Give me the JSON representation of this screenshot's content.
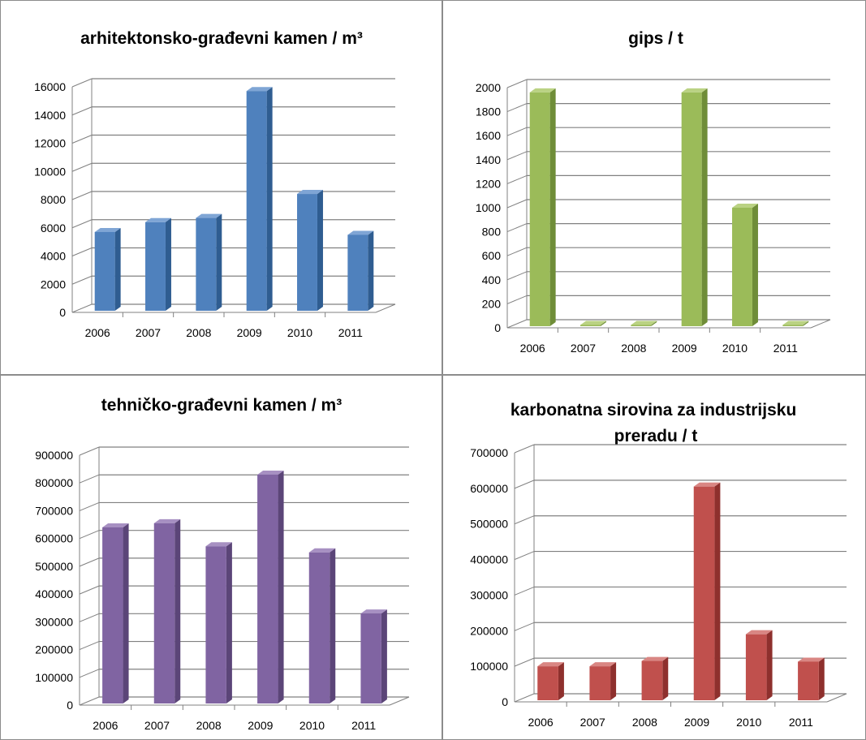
{
  "chart_data": [
    {
      "type": "bar",
      "title": "arhitektonsko-građevni kamen / m³",
      "categories": [
        "2006",
        "2007",
        "2008",
        "2009",
        "2010",
        "2011"
      ],
      "values": [
        5700,
        6400,
        6700,
        15700,
        8400,
        5500
      ],
      "ylim": [
        0,
        16000
      ],
      "yticks": [
        0,
        2000,
        4000,
        6000,
        8000,
        10000,
        12000,
        14000,
        16000
      ],
      "grid": true,
      "legend": "none",
      "colors": {
        "front": "#4f81bd",
        "top": "#7fa5d5",
        "side": "#2f5d91"
      }
    },
    {
      "type": "bar",
      "title": "gips / t",
      "categories": [
        "2006",
        "2007",
        "2008",
        "2009",
        "2010",
        "2011"
      ],
      "values": [
        1960,
        0,
        0,
        1960,
        1000,
        0
      ],
      "ylim": [
        0,
        2000
      ],
      "yticks": [
        0,
        200,
        400,
        600,
        800,
        1000,
        1200,
        1400,
        1600,
        1800,
        2000
      ],
      "grid": true,
      "legend": "none",
      "colors": {
        "front": "#9bbb59",
        "top": "#bad283",
        "side": "#6f8d38"
      }
    },
    {
      "type": "bar",
      "title": "tehničko-građevni kamen / m³",
      "categories": [
        "2006",
        "2007",
        "2008",
        "2009",
        "2010",
        "2011"
      ],
      "values": [
        640000,
        655000,
        572000,
        830000,
        550000,
        330000
      ],
      "ylim": [
        0,
        900000
      ],
      "yticks": [
        0,
        100000,
        200000,
        300000,
        400000,
        500000,
        600000,
        700000,
        800000,
        900000
      ],
      "grid": true,
      "legend": "none",
      "colors": {
        "front": "#8064a2",
        "top": "#a790c2",
        "side": "#5b4578"
      }
    },
    {
      "type": "bar",
      "title": "karbonatna sirovina za industrijsku preradu / t",
      "title_lines": [
        "karbonatna sirovina za industrijsku",
        "preradu / t"
      ],
      "categories": [
        "2006",
        "2007",
        "2008",
        "2009",
        "2010",
        "2011"
      ],
      "values": [
        100000,
        100000,
        115000,
        605000,
        190000,
        113000
      ],
      "ylim": [
        0,
        700000
      ],
      "yticks": [
        0,
        100000,
        200000,
        300000,
        400000,
        500000,
        600000,
        700000
      ],
      "grid": true,
      "legend": "none",
      "colors": {
        "front": "#c0504d",
        "top": "#d98683",
        "side": "#8e302d"
      }
    }
  ]
}
